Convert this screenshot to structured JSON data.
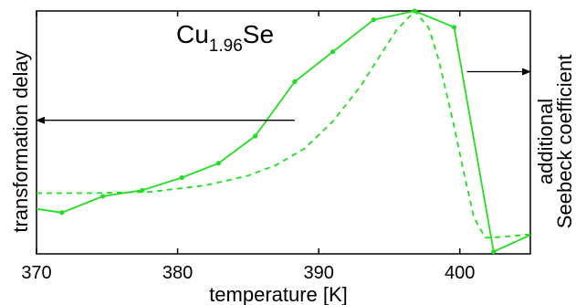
{
  "chart_data": {
    "type": "line",
    "title_main": "Cu",
    "title_sub": "1.96",
    "title_end": "Se",
    "xlabel": "temperature [K]",
    "ylabel_left": "transformation delay",
    "ylabel_right_line1": "additional",
    "ylabel_right_line2": "Seebeck coefficient",
    "xlim": [
      370,
      405
    ],
    "ylim": [
      0,
      1
    ],
    "xticks": [
      {
        "value": 370,
        "label": "370"
      },
      {
        "value": 380,
        "label": "380"
      },
      {
        "value": 390,
        "label": "390"
      },
      {
        "value": 400,
        "label": "400"
      }
    ],
    "grid": false,
    "series": [
      {
        "style": "solid-markers",
        "color": "#22dd22",
        "x": [
          370,
          371.8,
          374.7,
          377.5,
          380.3,
          382.9,
          385.5,
          388.3,
          391.0,
          393.9,
          396.8,
          399.6,
          402.4,
          405
        ],
        "y": [
          0.185,
          0.17,
          0.237,
          0.262,
          0.314,
          0.373,
          0.485,
          0.709,
          0.832,
          0.964,
          1.0,
          0.933,
          0.009,
          0.078
        ]
      },
      {
        "style": "dashed",
        "color": "#22dd22",
        "x": [
          370,
          374,
          378,
          382,
          385,
          387,
          389,
          391,
          393,
          394.5,
          395.5,
          396.8,
          397.8,
          398.5,
          399.5,
          400.3,
          401.0,
          401.8,
          403,
          405
        ],
        "y": [
          0.25,
          0.25,
          0.255,
          0.282,
          0.322,
          0.366,
          0.434,
          0.545,
          0.693,
          0.83,
          0.92,
          1.0,
          0.93,
          0.8,
          0.55,
          0.33,
          0.15,
          0.066,
          0.07,
          0.08
        ]
      }
    ],
    "annotations": [
      {
        "type": "arrow",
        "direction": "left",
        "from_x": 388.3,
        "to_x": 370,
        "y": 0.55
      },
      {
        "type": "arrow",
        "direction": "right",
        "from_x": 400.5,
        "to_x": 405,
        "y": 0.75
      }
    ]
  }
}
